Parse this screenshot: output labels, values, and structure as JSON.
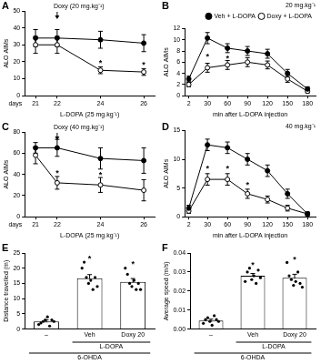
{
  "chart_data": [
    {
      "panel": "A",
      "type": "line",
      "grid": false,
      "y_label": "ALO AIMs",
      "x_label": "L-DOPA (25 mg.kg⁻¹)",
      "x_tick_caption": "days",
      "x": [
        21,
        22,
        24,
        26
      ],
      "xlim": [
        20.5,
        26.5
      ],
      "xticks": [
        21,
        22,
        24,
        26
      ],
      "ylim": [
        0,
        50
      ],
      "yticks": [
        0,
        10,
        20,
        30,
        40,
        50
      ],
      "series": [
        {
          "color": "#000000",
          "marker": "filled_circle",
          "values": [
            34,
            34,
            33,
            31
          ],
          "errors": [
            5,
            5,
            5,
            5
          ]
        },
        {
          "color": "#000000",
          "marker": "open_circle",
          "values": [
            30,
            30,
            15,
            14
          ],
          "errors": [
            5,
            5,
            2,
            2
          ]
        }
      ],
      "annotations": [
        {
          "text": "*",
          "x": 24,
          "y": 20
        },
        {
          "text": "*",
          "x": 26,
          "y": 19
        }
      ],
      "arrow_annotations": [
        {
          "text": "Doxy (20 mg.kg⁻¹)",
          "x": 22,
          "y": 50
        }
      ]
    },
    {
      "panel": "B",
      "type": "line",
      "grid": false,
      "title": "20 mg.kg⁻¹",
      "legend": "upper right",
      "y_label": "ALO AIMs",
      "x_label": "min after L-DOPA injection",
      "x": [
        2,
        30,
        60,
        90,
        120,
        150,
        180
      ],
      "xlim": [
        -4,
        192
      ],
      "xticks": [
        2,
        30,
        60,
        90,
        120,
        150,
        180
      ],
      "ylim": [
        0,
        12
      ],
      "yticks": [
        0,
        2,
        4,
        6,
        8,
        10,
        12
      ],
      "series": [
        {
          "name": "Veh + L-DOPA",
          "color": "#000000",
          "marker": "filled_circle",
          "values": [
            3,
            10.3,
            8.5,
            8,
            7.5,
            4,
            1.2
          ],
          "errors": [
            0.5,
            1,
            0.8,
            0.8,
            0.8,
            0.7,
            0.4
          ]
        },
        {
          "name": "Doxy + L-DOPA",
          "color": "#000000",
          "marker": "open_circle",
          "values": [
            2,
            5,
            5.5,
            6,
            5.5,
            3,
            0.8
          ],
          "errors": [
            0.4,
            0.8,
            0.8,
            0.8,
            0.7,
            0.6,
            0.3
          ]
        }
      ],
      "annotations": [
        {
          "text": "*",
          "x": 30,
          "y": 7.2
        },
        {
          "text": "*",
          "x": 60,
          "y": 7.0
        }
      ]
    },
    {
      "panel": "C",
      "type": "line",
      "grid": false,
      "y_label": "ALO AIMs",
      "x_label": "L-DOPA (25 mg.kg⁻¹)",
      "x_tick_caption": "days",
      "x": [
        21,
        22,
        24,
        26
      ],
      "xlim": [
        20.5,
        26.5
      ],
      "xticks": [
        21,
        22,
        24,
        26
      ],
      "ylim": [
        0,
        80
      ],
      "yticks": [
        0,
        20,
        40,
        60,
        80
      ],
      "series": [
        {
          "color": "#000000",
          "marker": "filled_circle",
          "values": [
            65,
            65,
            55,
            53
          ],
          "errors": [
            5,
            8,
            10,
            12
          ]
        },
        {
          "color": "#000000",
          "marker": "open_circle",
          "values": [
            58,
            32,
            30,
            25
          ],
          "errors": [
            8,
            6,
            7,
            10
          ]
        }
      ],
      "annotations": [
        {
          "text": "*",
          "x": 22,
          "y": 43
        },
        {
          "text": "*",
          "x": 24,
          "y": 41
        }
      ],
      "arrow_annotations": [
        {
          "text": "Doxy (40 mg.kg⁻¹)",
          "x": 22,
          "y": 80
        }
      ]
    },
    {
      "panel": "D",
      "type": "line",
      "grid": false,
      "title": "40 mg.kg⁻¹",
      "y_label": "ALO AIMs",
      "x_label": "min after L-DOPA injection",
      "x": [
        2,
        30,
        60,
        90,
        120,
        150,
        180
      ],
      "xlim": [
        -4,
        192
      ],
      "xticks": [
        2,
        30,
        60,
        90,
        120,
        150,
        180
      ],
      "ylim": [
        0,
        15
      ],
      "yticks": [
        0,
        5,
        10,
        15
      ],
      "series": [
        {
          "color": "#000000",
          "marker": "filled_circle",
          "values": [
            1.5,
            12.5,
            12,
            10,
            8,
            4,
            0.5
          ],
          "errors": [
            0.5,
            1,
            1,
            1,
            1,
            0.8,
            0.3
          ]
        },
        {
          "color": "#000000",
          "marker": "open_circle",
          "values": [
            1,
            6.5,
            6.5,
            4,
            3,
            1.5,
            0.5
          ],
          "errors": [
            0.4,
            1,
            1,
            0.8,
            0.6,
            0.5,
            0.3
          ]
        }
      ],
      "annotations": [
        {
          "text": "*",
          "x": 30,
          "y": 8.6
        },
        {
          "text": "*",
          "x": 60,
          "y": 8.6
        },
        {
          "text": "*",
          "x": 90,
          "y": 5.8
        }
      ]
    },
    {
      "panel": "E",
      "type": "bar",
      "grid": false,
      "color": "#ffffff",
      "y_label": "Distance travelled (m)",
      "categories": [
        "–",
        "Veh",
        "Doxy 20"
      ],
      "values": [
        2.5,
        16.7,
        15.5
      ],
      "errors": [
        0.5,
        1.2,
        1.1
      ],
      "points": [
        [
          1.5,
          2,
          2.5,
          3,
          4,
          1,
          3,
          2.5
        ],
        [
          20,
          22,
          17,
          15,
          16,
          13,
          17,
          14
        ],
        [
          20,
          18,
          15,
          14,
          16,
          13,
          15,
          13
        ]
      ],
      "ylim": [
        0,
        25
      ],
      "yticks": [
        0,
        5,
        10,
        15,
        20,
        25
      ],
      "group_labels": [
        {
          "text": "L-DOPA",
          "from": "Veh",
          "to": "Doxy 20"
        },
        {
          "text": "6-OHDA",
          "from": "–",
          "to": "Doxy 20"
        }
      ],
      "annotations": [
        {
          "text": "*",
          "x": "Veh",
          "y": 23.6
        },
        {
          "text": "*",
          "x": "Doxy 20",
          "y": 21.8
        }
      ]
    },
    {
      "panel": "F",
      "type": "bar",
      "grid": false,
      "color": "#ffffff",
      "y_label": "Average speed (m/s)",
      "categories": [
        "–",
        "Veh",
        "Doxy 20"
      ],
      "values": [
        0.0045,
        0.028,
        0.027
      ],
      "errors": [
        0.0007,
        0.0012,
        0.0018
      ],
      "points": [
        [
          0.003,
          0.005,
          0.006,
          0.004,
          0.002,
          0.007,
          0.005,
          0.004
        ],
        [
          0.025,
          0.03,
          0.032,
          0.026,
          0.028,
          0.024,
          0.031,
          0.027
        ],
        [
          0.035,
          0.028,
          0.026,
          0.023,
          0.025,
          0.03,
          0.024,
          0.022
        ]
      ],
      "ylim": [
        0,
        0.04
      ],
      "yticks": [
        {
          "value": 0,
          "label": "0.00"
        },
        0.01,
        0.02,
        0.03,
        0.04
      ],
      "group_labels": [
        {
          "text": "L-DOPA",
          "from": "Veh",
          "to": "Doxy 20"
        },
        {
          "text": "6-OHDA",
          "from": "–",
          "to": "Doxy 20"
        }
      ],
      "annotations": [
        {
          "text": "*",
          "x": "Veh",
          "y": 0.0345
        },
        {
          "text": "*",
          "x": "Doxy 20",
          "y": 0.0375
        }
      ]
    }
  ]
}
